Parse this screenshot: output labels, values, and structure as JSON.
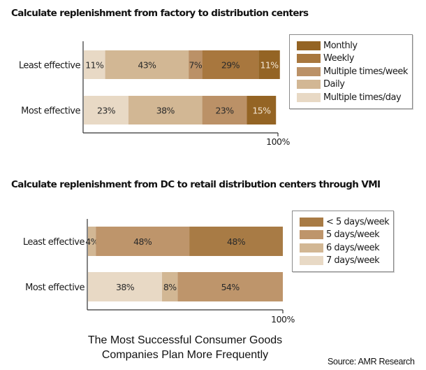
{
  "chart_data": [
    {
      "type": "bar",
      "orientation": "horizontal",
      "stacked": true,
      "normalized_percent": true,
      "title": "Calculate replenishment from factory to distribution centers",
      "categories": [
        "Least effective",
        "Most effective"
      ],
      "series": [
        {
          "name": "Multiple times/day",
          "color": "#e8d9c5",
          "values": [
            11,
            23
          ]
        },
        {
          "name": "Daily",
          "color": "#d2b794",
          "values": [
            43,
            38
          ]
        },
        {
          "name": "Multiple times/week",
          "color": "#bb9167",
          "values": [
            7,
            23
          ]
        },
        {
          "name": "Weekly",
          "color": "#a8773e",
          "values": [
            29,
            0
          ]
        },
        {
          "name": "Monthly",
          "color": "#946424",
          "values": [
            11,
            15
          ]
        }
      ],
      "legend_order": [
        "Monthly",
        "Weekly",
        "Multiple times/week",
        "Daily",
        "Multiple times/day"
      ],
      "label_colors": {
        "Monthly": "#f3e6d3"
      },
      "xlabel_end": "100%",
      "xlim": [
        0,
        100
      ],
      "grid": false,
      "legend_position": "right"
    },
    {
      "type": "bar",
      "orientation": "horizontal",
      "stacked": true,
      "normalized_percent": true,
      "title": "Calculate replenishment from DC to retail distribution centers through VMI",
      "categories": [
        "Least effective",
        "Most effective"
      ],
      "series": [
        {
          "name": "7 days/week",
          "color": "#e8d9c5",
          "values": [
            0,
            38
          ]
        },
        {
          "name": "6 days/week",
          "color": "#d2b794",
          "values": [
            4,
            8
          ]
        },
        {
          "name": "5 days/week",
          "color": "#be956b",
          "values": [
            48,
            54
          ]
        },
        {
          "name": "< 5 days/week",
          "color": "#a87b45",
          "values": [
            48,
            0
          ]
        }
      ],
      "legend_order": [
        "< 5 days/week",
        "5 days/week",
        "6 days/week",
        "7 days/week"
      ],
      "label_colors": {},
      "xlabel_end": "100%",
      "xlim": [
        0,
        100
      ],
      "grid": false,
      "legend_position": "right"
    }
  ],
  "caption": {
    "line1": "The Most Successful Consumer Goods",
    "line2": "Companies Plan More Frequently"
  },
  "source": "Source: AMR Research"
}
